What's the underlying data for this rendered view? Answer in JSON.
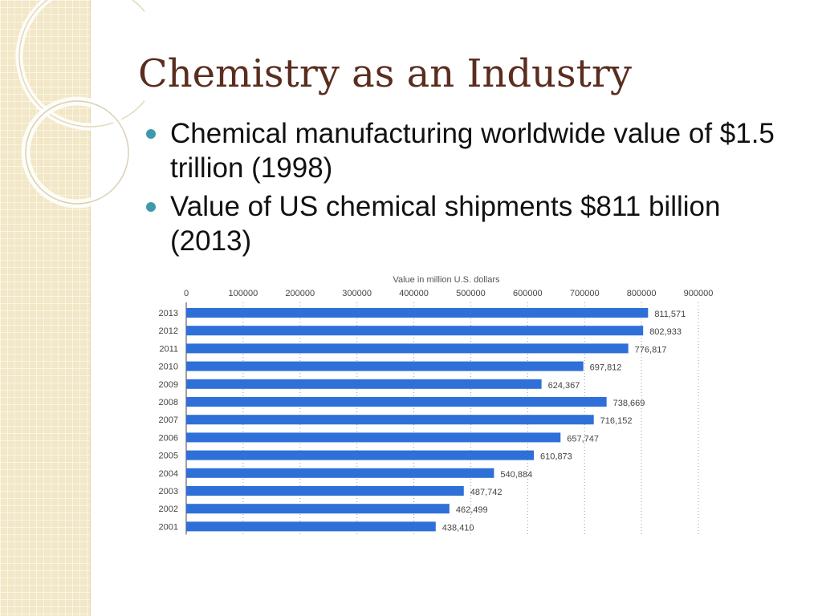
{
  "slide": {
    "title": "Chemistry as an Industry",
    "bullets": [
      "Chemical manufacturing worldwide value of $1.5 trillion (1998)",
      "Value of US chemical shipments $811 billion (2013)"
    ],
    "bullet_color": "#3e99aa",
    "title_color": "#5a2d1e",
    "side_panel_color": "#f2e7c6"
  },
  "chart_data": {
    "type": "bar",
    "orientation": "horizontal",
    "title": "",
    "xlabel": "Value in million U.S. dollars",
    "ylabel": "",
    "xlim": [
      0,
      900000
    ],
    "x_ticks": [
      "0",
      "100000",
      "200000",
      "300000",
      "400000",
      "500000",
      "600000",
      "700000",
      "800000",
      "900000"
    ],
    "categories": [
      "2013",
      "2012",
      "2011",
      "2010",
      "2009",
      "2008",
      "2007",
      "2006",
      "2005",
      "2004",
      "2003",
      "2002",
      "2001"
    ],
    "values": [
      811571,
      802933,
      776817,
      697812,
      624367,
      738669,
      716152,
      657747,
      610873,
      540884,
      487742,
      462499,
      438410
    ],
    "data_labels": [
      "811,571",
      "802,933",
      "776,817",
      "697,812",
      "624,367",
      "738,669",
      "716,152",
      "657,747",
      "610,873",
      "540,884",
      "487,742",
      "462,499",
      "438,410"
    ],
    "bar_color": "#2f6fd8",
    "grid": "vertical dotted",
    "axis_position": "top",
    "legend": "none"
  }
}
